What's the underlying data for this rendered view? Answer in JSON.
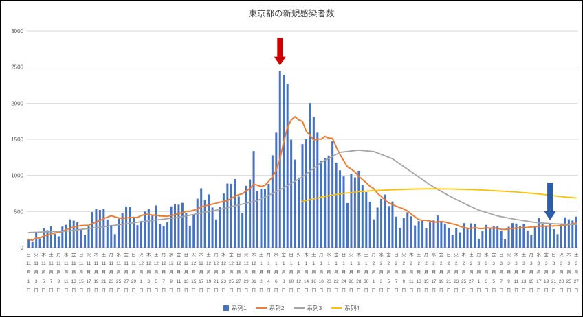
{
  "title": "東京都の新規感染者数",
  "chart_data": {
    "type": "combo",
    "title": "東京都の新規感染者数",
    "xlabel": "",
    "ylabel": "",
    "ylim": [
      0,
      3000
    ],
    "yticks": [
      0,
      500,
      1000,
      1500,
      2000,
      2500,
      3000
    ],
    "grid": true,
    "legend_position": "bottom",
    "x_tick_labels": [
      [
        "日",
        11,
        1
      ],
      [
        "火",
        11,
        3
      ],
      [
        "木",
        11,
        5
      ],
      [
        "土",
        11,
        7
      ],
      [
        "月",
        11,
        9
      ],
      [
        "水",
        11,
        11
      ],
      [
        "金",
        11,
        13
      ],
      [
        "日",
        11,
        15
      ],
      [
        "火",
        11,
        17
      ],
      [
        "木",
        11,
        19
      ],
      [
        "土",
        11,
        21
      ],
      [
        "月",
        11,
        23
      ],
      [
        "水",
        11,
        25
      ],
      [
        "金",
        11,
        27
      ],
      [
        "日",
        11,
        29
      ],
      [
        "火",
        12,
        1
      ],
      [
        "木",
        12,
        3
      ],
      [
        "土",
        12,
        5
      ],
      [
        "月",
        12,
        7
      ],
      [
        "水",
        12,
        9
      ],
      [
        "金",
        12,
        11
      ],
      [
        "日",
        12,
        13
      ],
      [
        "火",
        12,
        15
      ],
      [
        "木",
        12,
        17
      ],
      [
        "土",
        12,
        19
      ],
      [
        "月",
        12,
        21
      ],
      [
        "水",
        12,
        23
      ],
      [
        "金",
        12,
        25
      ],
      [
        "日",
        12,
        27
      ],
      [
        "火",
        12,
        29
      ],
      [
        "木",
        12,
        31
      ],
      [
        "土",
        1,
        2
      ],
      [
        "月",
        1,
        4
      ],
      [
        "水",
        1,
        6
      ],
      [
        "金",
        1,
        8
      ],
      [
        "日",
        1,
        10
      ],
      [
        "火",
        1,
        12
      ],
      [
        "木",
        1,
        14
      ],
      [
        "土",
        1,
        16
      ],
      [
        "月",
        1,
        18
      ],
      [
        "水",
        1,
        20
      ],
      [
        "金",
        1,
        22
      ],
      [
        "日",
        1,
        24
      ],
      [
        "火",
        1,
        26
      ],
      [
        "木",
        1,
        28
      ],
      [
        "土",
        1,
        30
      ],
      [
        "月",
        2,
        1
      ],
      [
        "水",
        2,
        3
      ],
      [
        "金",
        2,
        5
      ],
      [
        "日",
        2,
        7
      ],
      [
        "火",
        2,
        9
      ],
      [
        "木",
        2,
        11
      ],
      [
        "土",
        2,
        13
      ],
      [
        "月",
        2,
        15
      ],
      [
        "水",
        2,
        17
      ],
      [
        "金",
        2,
        19
      ],
      [
        "日",
        2,
        21
      ],
      [
        "火",
        2,
        23
      ],
      [
        "木",
        2,
        25
      ],
      [
        "土",
        2,
        27
      ],
      [
        "月",
        3,
        1
      ],
      [
        "水",
        3,
        3
      ],
      [
        "金",
        3,
        5
      ],
      [
        "日",
        3,
        7
      ],
      [
        "火",
        3,
        9
      ],
      [
        "木",
        3,
        11
      ],
      [
        "土",
        3,
        13
      ],
      [
        "月",
        3,
        15
      ],
      [
        "水",
        3,
        17
      ],
      [
        "金",
        3,
        19
      ],
      [
        "日",
        3,
        21
      ],
      [
        "火",
        3,
        23
      ],
      [
        "木",
        3,
        25
      ],
      [
        "土",
        3,
        27
      ]
    ],
    "series": [
      {
        "name": "系列1",
        "type": "bar",
        "color": "#4472C4",
        "values": [
          116,
          87,
          209,
          122,
          269,
          242,
          294,
          189,
          157,
          293,
          317,
          393,
          374,
          352,
          255,
          180,
          298,
          493,
          534,
          522,
          539,
          391,
          314,
          186,
          401,
          481,
          570,
          561,
          418,
          311,
          372,
          500,
          533,
          449,
          584,
          327,
          299,
          352,
          572,
          602,
          595,
          621,
          480,
          305,
          460,
          678,
          822,
          664,
          736,
          556,
          392,
          563,
          748,
          888,
          884,
          949,
          708,
          481,
          856,
          944,
          1337,
          783,
          814,
          816,
          884,
          1278,
          1591,
          2447,
          2392,
          2268,
          1494,
          1219,
          970,
          1433,
          1502,
          2001,
          1809,
          1592,
          1204,
          1240,
          1274,
          1471,
          1175,
          1070,
          986,
          618,
          1026,
          973,
          1064,
          868,
          769,
          633,
          393,
          556,
          676,
          734,
          577,
          639,
          429,
          276,
          412,
          491,
          434,
          307,
          369,
          371,
          266,
          350,
          378,
          445,
          353,
          327,
          272,
          178,
          275,
          213,
          340,
          270,
          337,
          329,
          121,
          232,
          316,
          279,
          301,
          293,
          237,
          116,
          290,
          340,
          335,
          304,
          330,
          239,
          175,
          300,
          409,
          323,
          303,
          342,
          256,
          187,
          337,
          420,
          394,
          376,
          430
        ]
      },
      {
        "name": "系列2",
        "type": "line",
        "color": "#ED7D31",
        "values": [
          116,
          102,
          137,
          134,
          161,
          174,
          191,
          202,
          212,
          224,
          252,
          269,
          288,
          296,
          306,
          309,
          310,
          335,
          355,
          376,
          403,
          422,
          442,
          426,
          412,
          405,
          412,
          415,
          419,
          418,
          445,
          459,
          466,
          449,
          452,
          439,
          438,
          435,
          445,
          455,
          476,
          481,
          503,
          504,
          519,
          534,
          566,
          576,
          592,
          603,
          615,
          630,
          640,
          650,
          681,
          711,
          733,
          746,
          788,
          816,
          880,
          865,
          846,
          862,
          919,
          979,
          1072,
          1230,
          1460,
          1668,
          1765,
          1813,
          1769,
          1746,
          1611,
          1555,
          1490,
          1504,
          1502,
          1540,
          1517,
          1513,
          1395,
          1289,
          1203,
          1119,
          1089,
          1046,
          987,
          944,
          901,
          850,
          818,
          751,
          708,
          661,
          620,
          601,
          572,
          555,
          535,
          508,
          465,
          427,
          388,
          380,
          379,
          370,
          354,
          355,
          362,
          356,
          342,
          329,
          318,
          295,
          280,
          268,
          269,
          277,
          269,
          263,
          278,
          269,
          274,
          267,
          254,
          253,
          262,
          265,
          273,
          274,
          279,
          279,
          288,
          289,
          299,
          297,
          297,
          299,
          301,
          303,
          308,
          310,
          320,
          330,
          343
        ]
      },
      {
        "name": "系列3",
        "type": "line",
        "color": "#A5A5A5",
        "points": [
          [
            0,
            210
          ],
          [
            10,
            230
          ],
          [
            20,
            290
          ],
          [
            30,
            360
          ],
          [
            40,
            420
          ],
          [
            50,
            520
          ],
          [
            61,
            650
          ],
          [
            67,
            800
          ],
          [
            73,
            980
          ],
          [
            78,
            1180
          ],
          [
            83,
            1320
          ],
          [
            88,
            1350
          ],
          [
            92,
            1330
          ],
          [
            97,
            1230
          ],
          [
            102,
            1050
          ],
          [
            107,
            870
          ],
          [
            112,
            720
          ],
          [
            117,
            590
          ],
          [
            120,
            520
          ],
          [
            125,
            440
          ],
          [
            130,
            390
          ],
          [
            135,
            350
          ],
          [
            140,
            330
          ],
          [
            146,
            320
          ]
        ]
      },
      {
        "name": "系列4",
        "type": "line",
        "color": "#FFC000",
        "points": [
          [
            73,
            640
          ],
          [
            78,
            700
          ],
          [
            83,
            745
          ],
          [
            88,
            775
          ],
          [
            92,
            790
          ],
          [
            97,
            800
          ],
          [
            102,
            810
          ],
          [
            107,
            815
          ],
          [
            112,
            812
          ],
          [
            117,
            805
          ],
          [
            120,
            800
          ],
          [
            125,
            785
          ],
          [
            130,
            770
          ],
          [
            135,
            748
          ],
          [
            138,
            732
          ],
          [
            141,
            712
          ],
          [
            144,
            697
          ],
          [
            146,
            688
          ]
        ]
      }
    ],
    "annotations": [
      {
        "name": "red-down-arrow",
        "shape": "down-arrow",
        "color": "#CC0000",
        "day_index": 67,
        "value_top": 2900,
        "value_tip": 2520
      },
      {
        "name": "blue-down-arrow",
        "shape": "down-arrow",
        "color": "#2A5CAA",
        "day_index": 139,
        "value_top": 900,
        "value_tip": 380
      }
    ]
  }
}
